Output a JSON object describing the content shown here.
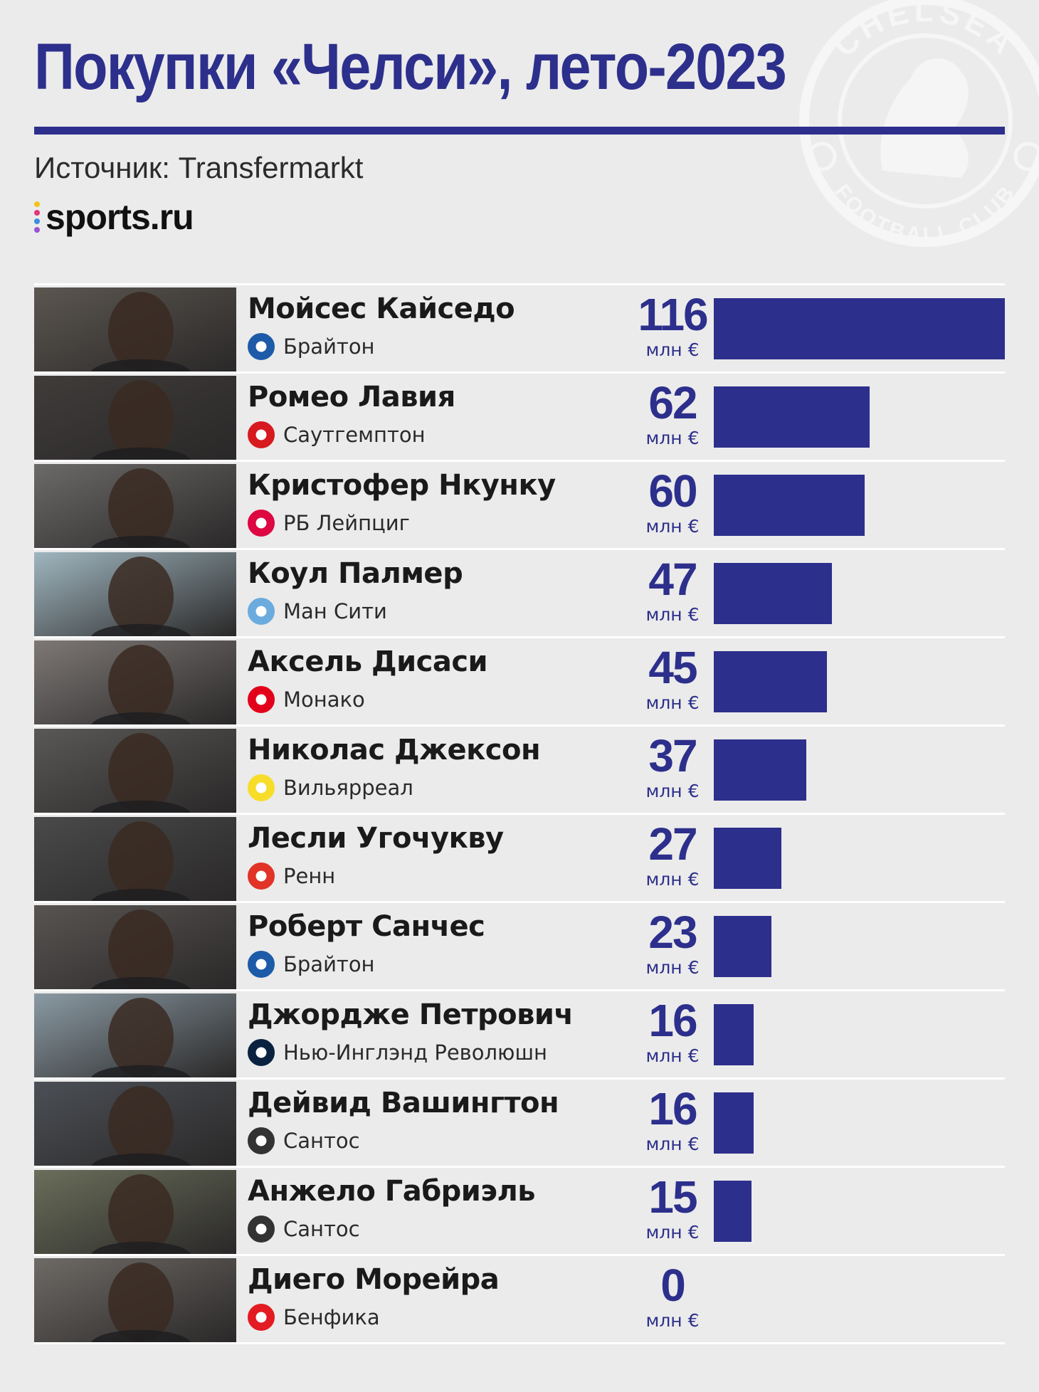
{
  "header": {
    "title": "Покупки «Челси», лето-2023",
    "source": "Источник: Transfermarkt",
    "logo_text": "sports.ru"
  },
  "crest": {
    "top_text": "CHELSEA",
    "bottom_text": "FOOTBALL CLUB"
  },
  "colors": {
    "accent": "#2d2f8c",
    "background": "#ebebeb",
    "logo_dots": [
      "#f2c318",
      "#e4367e",
      "#3c8de0",
      "#9a52d2"
    ]
  },
  "unit_label": "млн €",
  "chart_data": {
    "type": "bar",
    "orientation": "horizontal",
    "title": "Покупки «Челси», лето-2023",
    "unit": "млн €",
    "xlim": [
      0,
      116
    ],
    "grid": false,
    "categories": [
      "Мойсес Кайседо",
      "Ромео Лавия",
      "Кристофер Нкунку",
      "Коул Палмер",
      "Аксель Дисаси",
      "Николас Джексон",
      "Лесли Угочукву",
      "Роберт Санчес",
      "Джордже Петрович",
      "Дейвид Вашингтон",
      "Анжело Габриэль",
      "Диего Морейра"
    ],
    "values": [
      116,
      62,
      60,
      47,
      45,
      37,
      27,
      23,
      16,
      16,
      15,
      0
    ],
    "clubs": [
      "Брайтон",
      "Саутгемптон",
      "РБ Лейпциг",
      "Ман Сити",
      "Монако",
      "Вильярреал",
      "Ренн",
      "Брайтон",
      "Нью-Инглэнд Революшн",
      "Сантос",
      "Сантос",
      "Бенфика"
    ],
    "club_icons": [
      "brighton-crest",
      "southampton-crest",
      "rb-leipzig-crest",
      "man-city-crest",
      "monaco-crest",
      "villarreal-crest",
      "rennes-crest",
      "brighton-crest",
      "new-england-revolution-crest",
      "santos-crest",
      "santos-crest",
      "benfica-crest"
    ],
    "club_colors": [
      "#1d5ba8",
      "#d71920",
      "#dd0741",
      "#6cabdd",
      "#e2001a",
      "#f7dd2a",
      "#e13327",
      "#1d5ba8",
      "#0a2240",
      "#333333",
      "#333333",
      "#e31b23"
    ]
  }
}
